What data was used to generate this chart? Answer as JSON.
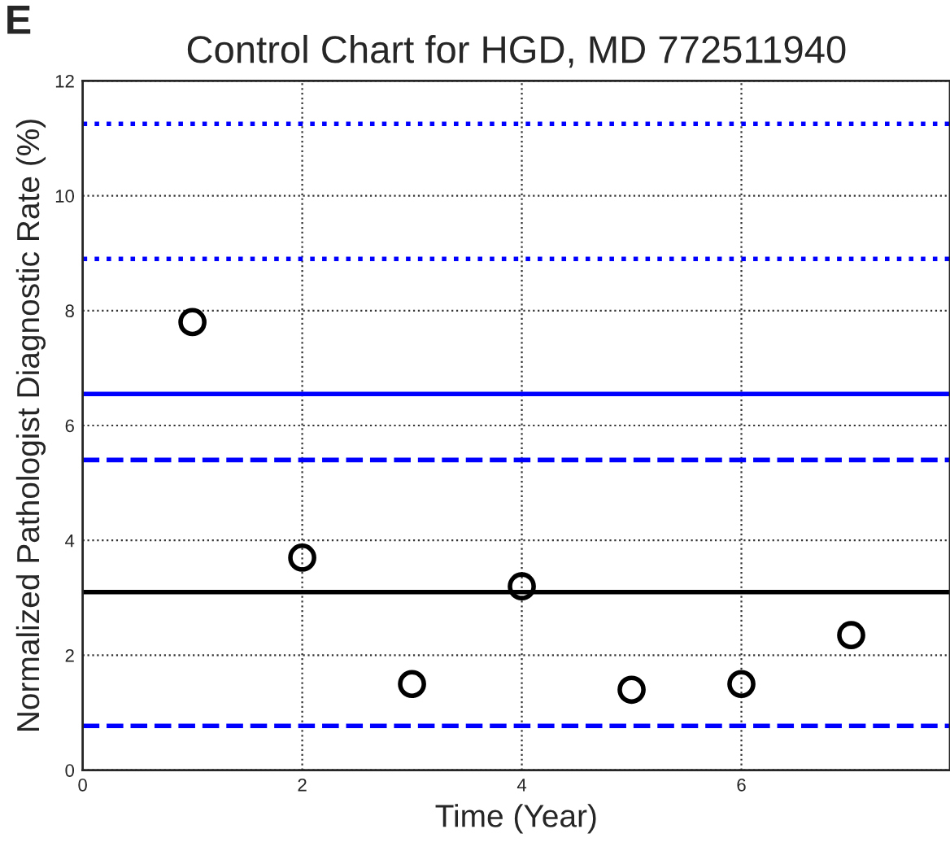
{
  "chart_data": {
    "type": "scatter",
    "title": "Control Chart for HGD, MD 772511940",
    "xlabel": "Time (Year)",
    "ylabel": "Normalized Pathologist Diagnostic Rate (%)",
    "annotations": [
      "E"
    ],
    "x": [
      1,
      2,
      3,
      4,
      5,
      6,
      7
    ],
    "series": [
      {
        "color": "#000000",
        "values": [
          7.8,
          3.7,
          1.5,
          3.2,
          1.4,
          1.5,
          2.35
        ]
      }
    ],
    "xlim": [
      0,
      7.9
    ],
    "xticks": [
      0,
      2,
      4,
      6
    ],
    "ylim": [
      0,
      12
    ],
    "yticks": [
      0,
      2,
      4,
      6,
      8,
      10,
      12
    ],
    "ref_lines": [
      {
        "axis": "y",
        "value": 3.1,
        "color": "#000000",
        "line_style": "solid"
      },
      {
        "axis": "y",
        "value": 6.55,
        "color": "#0000ff",
        "line_style": "solid"
      },
      {
        "axis": "y",
        "value": 5.4,
        "color": "#0000ff",
        "line_style": "dashed"
      },
      {
        "axis": "y",
        "value": 0.77,
        "color": "#0000ff",
        "line_style": "dashed"
      },
      {
        "axis": "y",
        "value": 8.9,
        "color": "#0000ff",
        "line_style": "dotted"
      },
      {
        "axis": "y",
        "value": 11.25,
        "color": "#0000ff",
        "line_style": "dotted"
      }
    ],
    "grid": true,
    "marker": "circle",
    "legend": false
  }
}
